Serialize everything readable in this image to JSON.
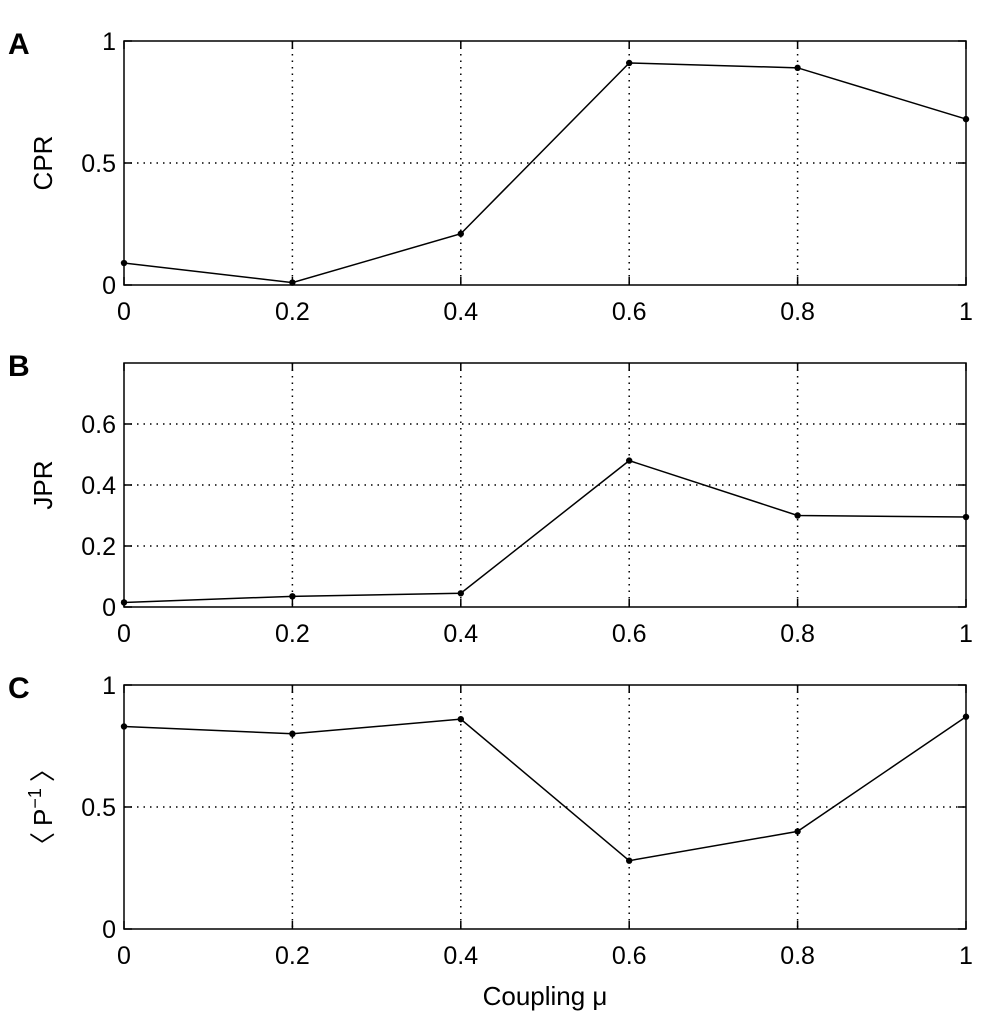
{
  "chart_data": [
    {
      "type": "line",
      "panel": "A",
      "x": [
        0,
        0.2,
        0.4,
        0.6,
        0.8,
        1
      ],
      "values": [
        0.09,
        0.01,
        0.21,
        0.91,
        0.89,
        0.68
      ],
      "ylabel": "CPR",
      "xlim": [
        0,
        1
      ],
      "ylim": [
        0,
        1
      ],
      "xticks": [
        "0",
        "0.2",
        "0.4",
        "0.6",
        "0.8",
        "1"
      ],
      "yticks": [
        {
          "value": 0,
          "label": "0"
        },
        {
          "value": 0.5,
          "label": "0.5"
        },
        {
          "value": 1,
          "label": "1"
        }
      ],
      "grid": true
    },
    {
      "type": "line",
      "panel": "B",
      "x": [
        0,
        0.2,
        0.4,
        0.6,
        0.8,
        1
      ],
      "values": [
        0.015,
        0.035,
        0.045,
        0.48,
        0.3,
        0.295
      ],
      "ylabel": "JPR",
      "xlim": [
        0,
        1
      ],
      "ylim": [
        0,
        0.8
      ],
      "xticks": [
        "0",
        "0.2",
        "0.4",
        "0.6",
        "0.8",
        "1"
      ],
      "yticks": [
        {
          "value": 0,
          "label": "0"
        },
        {
          "value": 0.2,
          "label": "0.2"
        },
        {
          "value": 0.4,
          "label": "0.4"
        },
        {
          "value": 0.6,
          "label": "0.6"
        }
      ],
      "grid": true
    },
    {
      "type": "line",
      "panel": "C",
      "x": [
        0,
        0.2,
        0.4,
        0.6,
        0.8,
        1
      ],
      "values": [
        0.83,
        0.8,
        0.86,
        0.28,
        0.4,
        0.87
      ],
      "ylabel": "〈 P⁻¹ 〉",
      "ylabel_base": "P",
      "ylabel_superscript": "−1",
      "ylabel_left_bracket": "〈",
      "ylabel_right_bracket": "〉",
      "xlabel": "Coupling μ",
      "xlim": [
        0,
        1
      ],
      "ylim": [
        0,
        1
      ],
      "xticks": [
        "0",
        "0.2",
        "0.4",
        "0.6",
        "0.8",
        "1"
      ],
      "yticks": [
        {
          "value": 0,
          "label": "0"
        },
        {
          "value": 0.5,
          "label": "0.5"
        },
        {
          "value": 1,
          "label": "1"
        }
      ],
      "grid": true
    }
  ],
  "colors": {
    "line": "#000000",
    "grid": "#000000",
    "background": "#ffffff"
  }
}
